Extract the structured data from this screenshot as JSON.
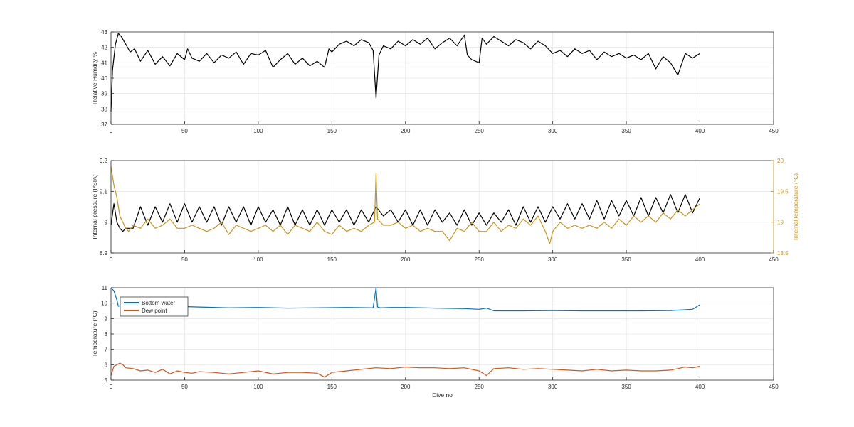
{
  "chart_data": [
    {
      "type": "line",
      "id": "humidity",
      "xlabel": "",
      "ylabel": "Relative Humdity %",
      "xlim": [
        0,
        450
      ],
      "ylim": [
        37,
        43
      ],
      "xticks": [
        0,
        50,
        100,
        150,
        200,
        250,
        300,
        350,
        400,
        450
      ],
      "yticks": [
        37,
        38,
        39,
        40,
        41,
        42,
        43
      ],
      "grid": true,
      "series": [
        {
          "color": "#000000",
          "x": [
            0,
            1,
            3,
            5,
            7,
            10,
            13,
            16,
            20,
            25,
            30,
            35,
            40,
            45,
            50,
            52,
            55,
            60,
            65,
            70,
            75,
            80,
            85,
            90,
            95,
            100,
            105,
            110,
            115,
            120,
            125,
            130,
            135,
            140,
            145,
            148,
            150,
            155,
            160,
            165,
            170,
            175,
            178,
            180,
            182,
            185,
            190,
            195,
            200,
            205,
            210,
            215,
            220,
            225,
            230,
            235,
            240,
            242,
            245,
            250,
            252,
            255,
            260,
            265,
            270,
            275,
            280,
            285,
            290,
            295,
            300,
            305,
            310,
            315,
            320,
            325,
            330,
            335,
            340,
            345,
            350,
            355,
            360,
            365,
            370,
            375,
            380,
            385,
            390,
            395,
            400
          ],
          "y": [
            37.8,
            40.5,
            42.2,
            42.9,
            42.7,
            42.2,
            41.7,
            41.9,
            41.1,
            41.8,
            40.9,
            41.4,
            40.8,
            41.6,
            41.2,
            41.9,
            41.3,
            41.1,
            41.6,
            41.0,
            41.5,
            41.3,
            41.7,
            40.9,
            41.6,
            41.5,
            41.8,
            40.7,
            41.2,
            41.6,
            40.9,
            41.3,
            40.8,
            41.1,
            40.7,
            41.9,
            41.7,
            42.2,
            42.4,
            42.1,
            42.5,
            42.3,
            41.8,
            38.7,
            41.5,
            42.1,
            41.9,
            42.4,
            42.1,
            42.5,
            42.2,
            42.6,
            41.9,
            42.3,
            42.6,
            42.1,
            42.8,
            41.5,
            41.2,
            41.0,
            42.6,
            42.2,
            42.7,
            42.4,
            42.1,
            42.5,
            42.3,
            41.9,
            42.4,
            42.1,
            41.6,
            41.8,
            41.4,
            41.9,
            41.6,
            41.8,
            41.2,
            41.7,
            41.4,
            41.6,
            41.3,
            41.5,
            41.2,
            41.6,
            40.6,
            41.4,
            41.0,
            40.2,
            41.6,
            41.3,
            41.6
          ]
        }
      ]
    },
    {
      "type": "line",
      "id": "pressure",
      "xlabel": "",
      "ylabel": "Internal pressure (PSIA)",
      "ylabel_right": "Internal temperature (°C)",
      "xlim": [
        0,
        450
      ],
      "ylim": [
        8.9,
        9.2
      ],
      "ylim_right": [
        18.5,
        20
      ],
      "xticks": [
        0,
        50,
        100,
        150,
        200,
        250,
        300,
        350,
        400,
        450
      ],
      "yticks": [
        8.9,
        9,
        9.1,
        9.2
      ],
      "yticks_right": [
        18.5,
        19,
        19.5,
        20
      ],
      "grid": true,
      "series": [
        {
          "axis": "left",
          "color": "#000000",
          "x": [
            0,
            2,
            4,
            6,
            8,
            10,
            15,
            20,
            25,
            30,
            35,
            40,
            45,
            50,
            55,
            60,
            65,
            70,
            75,
            80,
            85,
            90,
            95,
            100,
            105,
            110,
            115,
            120,
            125,
            130,
            135,
            140,
            145,
            150,
            155,
            160,
            165,
            170,
            175,
            180,
            185,
            190,
            195,
            200,
            205,
            210,
            215,
            220,
            225,
            230,
            235,
            240,
            245,
            250,
            255,
            260,
            265,
            270,
            275,
            280,
            285,
            290,
            295,
            300,
            305,
            310,
            315,
            320,
            325,
            330,
            335,
            340,
            345,
            350,
            355,
            360,
            365,
            370,
            375,
            380,
            385,
            390,
            395,
            400
          ],
          "y": [
            8.99,
            9.06,
            9.0,
            8.98,
            8.97,
            8.98,
            8.98,
            9.05,
            8.99,
            9.05,
            9.0,
            9.06,
            9.0,
            9.06,
            9.0,
            9.05,
            9.0,
            9.05,
            8.99,
            9.05,
            9.0,
            9.05,
            8.99,
            9.05,
            9.0,
            9.04,
            8.99,
            9.05,
            8.99,
            9.04,
            8.99,
            9.04,
            8.99,
            9.04,
            9.0,
            9.04,
            8.99,
            9.04,
            9.0,
            9.05,
            9.02,
            9.04,
            9.0,
            9.04,
            8.99,
            9.04,
            8.99,
            9.04,
            9.0,
            9.03,
            8.99,
            9.04,
            8.99,
            9.03,
            8.99,
            9.03,
            9.0,
            9.04,
            8.99,
            9.05,
            9.0,
            9.05,
            9.0,
            9.05,
            9.01,
            9.06,
            9.01,
            9.06,
            9.01,
            9.07,
            9.01,
            9.07,
            9.02,
            9.07,
            9.02,
            9.08,
            9.02,
            9.08,
            9.03,
            9.09,
            9.03,
            9.09,
            9.03,
            9.08
          ]
        },
        {
          "axis": "right",
          "color": "#c8961e",
          "x": [
            0,
            2,
            4,
            6,
            8,
            10,
            12,
            15,
            20,
            25,
            30,
            35,
            40,
            45,
            50,
            55,
            60,
            65,
            70,
            75,
            80,
            85,
            90,
            95,
            100,
            105,
            110,
            115,
            120,
            125,
            130,
            135,
            140,
            145,
            150,
            155,
            160,
            165,
            170,
            175,
            179,
            180,
            181,
            185,
            190,
            195,
            200,
            205,
            210,
            215,
            220,
            225,
            230,
            235,
            240,
            245,
            250,
            255,
            260,
            265,
            270,
            275,
            280,
            285,
            290,
            295,
            298,
            300,
            305,
            310,
            315,
            320,
            325,
            330,
            335,
            340,
            345,
            350,
            355,
            360,
            365,
            370,
            375,
            380,
            385,
            390,
            395,
            400
          ],
          "y": [
            19.9,
            19.6,
            19.4,
            19.1,
            19.0,
            18.9,
            18.85,
            18.95,
            18.9,
            19.05,
            18.9,
            18.95,
            19.05,
            18.9,
            18.9,
            18.95,
            18.9,
            18.85,
            18.9,
            19.0,
            18.8,
            18.95,
            18.9,
            18.85,
            18.9,
            18.95,
            18.85,
            18.95,
            18.8,
            18.95,
            18.9,
            18.85,
            19.0,
            18.85,
            18.8,
            18.95,
            18.85,
            18.9,
            18.85,
            18.95,
            19.0,
            19.8,
            19.05,
            18.95,
            18.95,
            19.0,
            18.9,
            18.95,
            18.85,
            18.9,
            18.85,
            18.85,
            18.7,
            18.9,
            18.85,
            19.0,
            18.85,
            18.85,
            19.0,
            18.85,
            18.95,
            18.9,
            19.05,
            18.95,
            19.1,
            18.85,
            18.65,
            18.85,
            19.0,
            18.9,
            18.95,
            18.9,
            18.95,
            18.9,
            19.0,
            18.9,
            19.05,
            18.95,
            19.1,
            19.0,
            19.1,
            19.0,
            19.15,
            19.05,
            19.2,
            19.1,
            19.2,
            19.3
          ]
        }
      ]
    },
    {
      "type": "line",
      "id": "temperature",
      "xlabel": "Dive no",
      "ylabel": "Temperature (°C)",
      "xlim": [
        0,
        450
      ],
      "ylim": [
        5,
        11
      ],
      "xticks": [
        0,
        50,
        100,
        150,
        200,
        250,
        300,
        350,
        400,
        450
      ],
      "yticks": [
        5,
        6,
        7,
        8,
        9,
        10,
        11
      ],
      "grid": true,
      "legend": "top-left",
      "series": [
        {
          "name": "Bottom water",
          "color": "#0072bd",
          "x": [
            0,
            2,
            4,
            5,
            8,
            12,
            20,
            40,
            60,
            80,
            100,
            120,
            140,
            160,
            178,
            180,
            181,
            183,
            190,
            200,
            220,
            240,
            250,
            255,
            260,
            280,
            300,
            320,
            340,
            360,
            380,
            395,
            400
          ],
          "y": [
            11.0,
            10.8,
            10.2,
            9.8,
            9.9,
            9.85,
            9.8,
            9.8,
            9.75,
            9.7,
            9.72,
            9.68,
            9.7,
            9.72,
            9.7,
            11.0,
            9.75,
            9.7,
            9.72,
            9.72,
            9.68,
            9.65,
            9.6,
            9.68,
            9.5,
            9.5,
            9.52,
            9.5,
            9.5,
            9.5,
            9.52,
            9.6,
            9.9
          ]
        },
        {
          "name": "Dew point",
          "color": "#d95319",
          "x": [
            0,
            2,
            4,
            6,
            8,
            10,
            15,
            20,
            25,
            30,
            35,
            40,
            45,
            50,
            55,
            60,
            70,
            80,
            90,
            100,
            110,
            120,
            130,
            140,
            145,
            150,
            160,
            170,
            180,
            190,
            200,
            210,
            220,
            230,
            240,
            250,
            255,
            260,
            270,
            280,
            290,
            300,
            310,
            320,
            330,
            340,
            350,
            360,
            370,
            380,
            390,
            395,
            400
          ],
          "y": [
            5.3,
            5.9,
            6.0,
            6.1,
            6.0,
            5.8,
            5.75,
            5.6,
            5.65,
            5.5,
            5.7,
            5.4,
            5.6,
            5.5,
            5.45,
            5.55,
            5.5,
            5.4,
            5.5,
            5.6,
            5.4,
            5.5,
            5.5,
            5.45,
            5.2,
            5.5,
            5.6,
            5.7,
            5.8,
            5.75,
            5.85,
            5.8,
            5.8,
            5.75,
            5.8,
            5.6,
            5.3,
            5.75,
            5.8,
            5.7,
            5.75,
            5.7,
            5.65,
            5.6,
            5.7,
            5.6,
            5.65,
            5.6,
            5.6,
            5.65,
            5.85,
            5.8,
            5.9
          ]
        }
      ]
    }
  ]
}
